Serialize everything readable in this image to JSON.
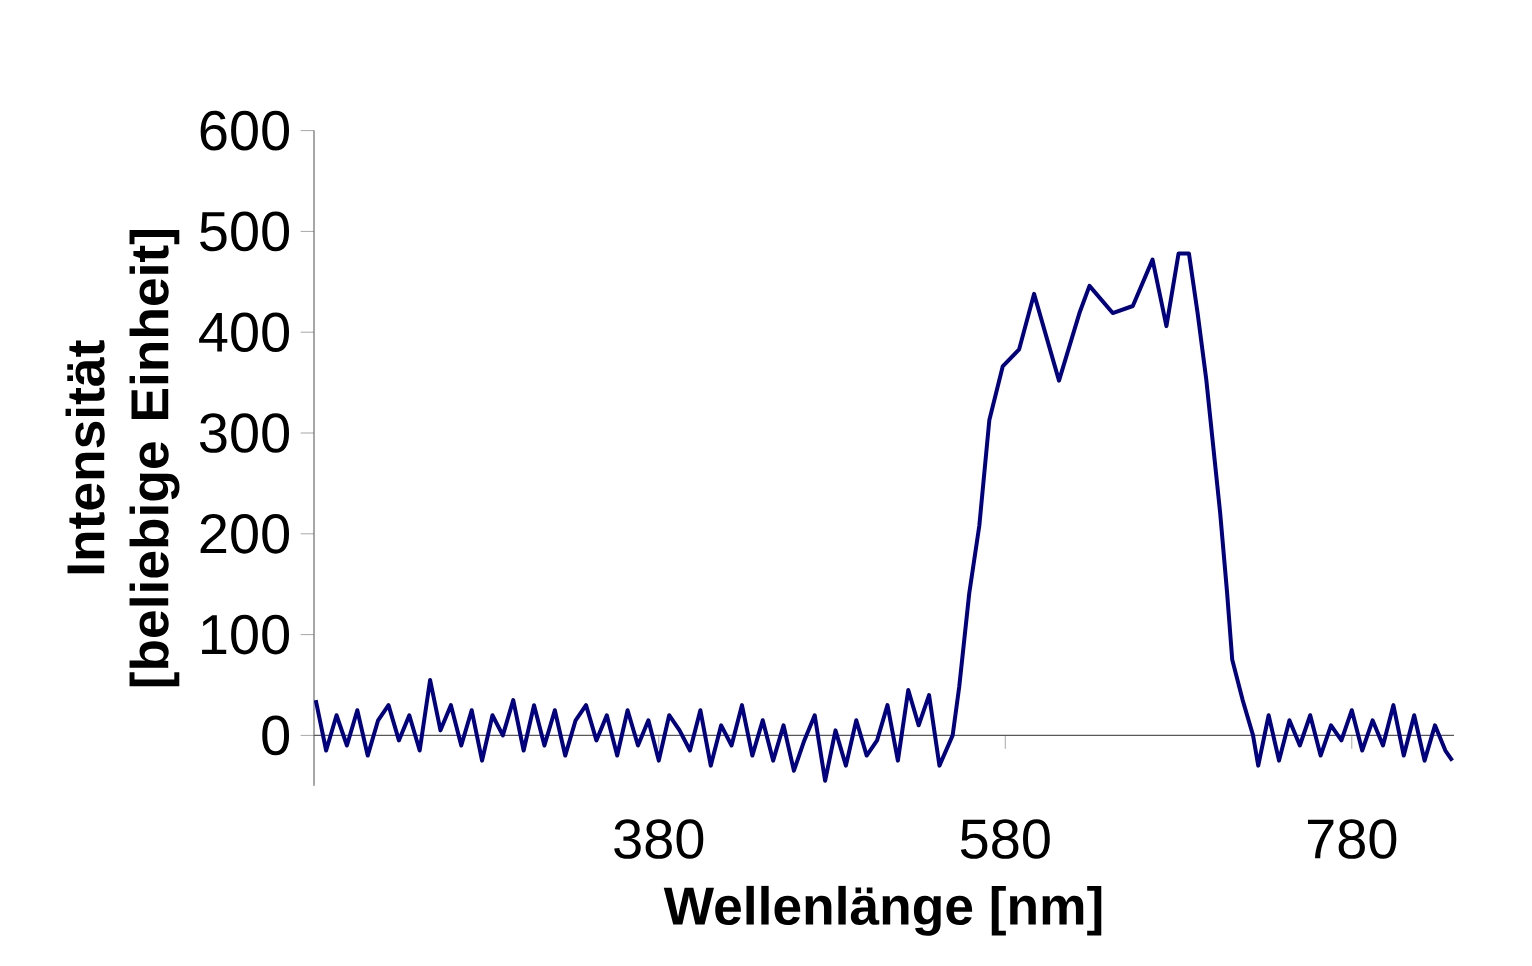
{
  "chart_data": {
    "type": "line",
    "xlabel": "Wellenlänge [nm]",
    "ylabel": "Intensität [beliebige Einheit]",
    "xlim": [
      181,
      839
    ],
    "ylim": [
      -50,
      600
    ],
    "xticks": [
      380,
      580,
      780
    ],
    "yticks": [
      0,
      100,
      200,
      300,
      400,
      500,
      600
    ],
    "grid": false,
    "line_style": "solid",
    "marker": "none",
    "series": [
      {
        "color": "#000080",
        "x": [
          182,
          188,
          194,
          200,
          206,
          212,
          218,
          224,
          230,
          236,
          242,
          248,
          254,
          260,
          266,
          272,
          278,
          284,
          290,
          296,
          302,
          308,
          314,
          320,
          326,
          332,
          338,
          344,
          350,
          356,
          362,
          368,
          374,
          380,
          386,
          392,
          398,
          404,
          410,
          416,
          422,
          428,
          434,
          440,
          446,
          452,
          458,
          464,
          470,
          476,
          482,
          488,
          494,
          500,
          506,
          512,
          518,
          524,
          530,
          536,
          542,
          549.6,
          553.4,
          559.2,
          565,
          570.8,
          578.5,
          588,
          596.6,
          611,
          622.8,
          628.6,
          642,
          653.6,
          665,
          673,
          680,
          686,
          691,
          696,
          700,
          704,
          708,
          711,
          717,
          723,
          726,
          732,
          738,
          744,
          750,
          756,
          762,
          768,
          774,
          780,
          786,
          792,
          798,
          804,
          810,
          816,
          822,
          828,
          834,
          838
        ],
        "values": [
          35,
          -15,
          20,
          -10,
          25,
          -20,
          15,
          30,
          -5,
          20,
          -15,
          55,
          5,
          30,
          -10,
          25,
          -25,
          20,
          0,
          35,
          -15,
          30,
          -10,
          25,
          -20,
          15,
          30,
          -5,
          20,
          -20,
          25,
          -10,
          15,
          -25,
          20,
          5,
          -15,
          25,
          -30,
          10,
          -10,
          30,
          -20,
          15,
          -25,
          10,
          -35,
          -5,
          20,
          -45,
          5,
          -30,
          15,
          -20,
          -5,
          30,
          -25,
          45,
          10,
          40,
          -30,
          0,
          48,
          141,
          208,
          313,
          366,
          383,
          438,
          352,
          419,
          446,
          419,
          426,
          472,
          406,
          478,
          478,
          419,
          353,
          287,
          221,
          142,
          75,
          35,
          0,
          -30,
          20,
          -25,
          15,
          -10,
          20,
          -20,
          10,
          -5,
          25,
          -15,
          15,
          -10,
          30,
          -20,
          20,
          -25,
          10,
          -15,
          -25
        ]
      }
    ]
  }
}
